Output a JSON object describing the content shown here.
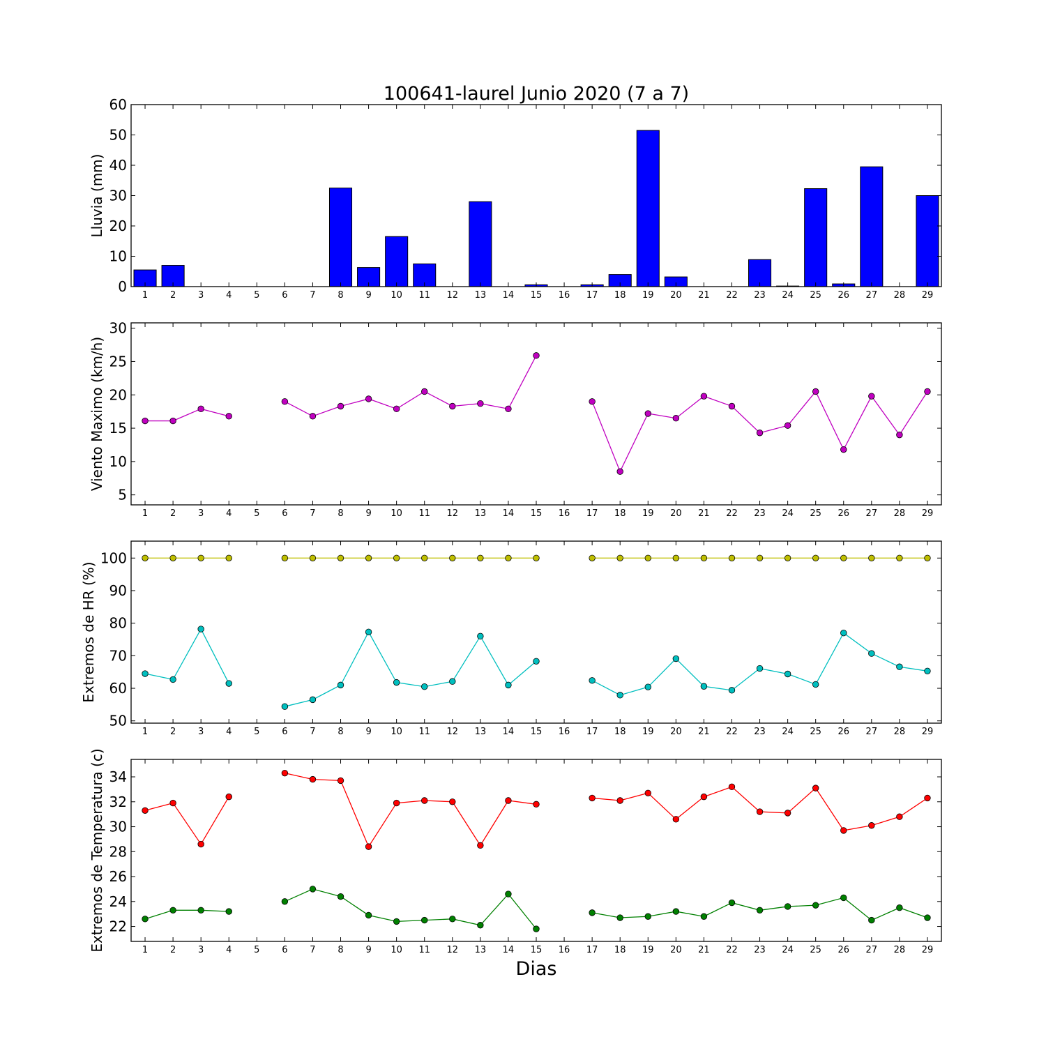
{
  "chart_data": {
    "title": "100641-laurel Junio 2020  (7 a 7)",
    "xlabel": "Dias",
    "days": [
      1,
      2,
      3,
      4,
      5,
      6,
      7,
      8,
      9,
      10,
      11,
      12,
      13,
      14,
      15,
      16,
      17,
      18,
      19,
      20,
      21,
      22,
      23,
      24,
      25,
      26,
      27,
      28,
      29
    ],
    "panels": [
      {
        "type": "bar",
        "ylabel": "Lluvia (mm)",
        "ylim": [
          0,
          60
        ],
        "yticks": [
          0,
          10,
          20,
          30,
          40,
          50,
          60
        ],
        "series": [
          {
            "color": "#0000ff",
            "values": [
              5.5,
              7,
              0,
              0,
              0,
              0,
              0,
              32.5,
              6.3,
              16.5,
              7.5,
              0,
              28,
              0,
              0.6,
              0,
              0.6,
              4,
              51.5,
              3.2,
              0,
              0,
              8.9,
              0.2,
              32.3,
              0.9,
              39.5,
              0,
              30
            ]
          }
        ]
      },
      {
        "type": "line",
        "ylabel": "Viento Maximo (km/h)",
        "ylim": [
          3.5,
          30.8
        ],
        "yticks": [
          5,
          10,
          15,
          20,
          25,
          30
        ],
        "series": [
          {
            "color": "#c000c0",
            "values": [
              16.1,
              16.1,
              17.9,
              16.8,
              null,
              19,
              16.8,
              18.3,
              19.4,
              17.9,
              20.5,
              18.3,
              18.7,
              17.9,
              25.9,
              null,
              19,
              8.5,
              17.2,
              16.5,
              19.8,
              18.3,
              14.3,
              15.4,
              20.5,
              11.8,
              19.8,
              14,
              20.5
            ]
          }
        ]
      },
      {
        "type": "line",
        "ylabel": "Extremos de HR (%)",
        "ylim": [
          49.3,
          105.2
        ],
        "yticks": [
          50,
          60,
          70,
          80,
          90,
          100
        ],
        "series": [
          {
            "color": "#bfbf00",
            "values": [
              100,
              100,
              100,
              100,
              null,
              100,
              100,
              100,
              100,
              100,
              100,
              100,
              100,
              100,
              100,
              null,
              100,
              100,
              100,
              100,
              100,
              100,
              100,
              100,
              100,
              100,
              100,
              100,
              100
            ]
          },
          {
            "color": "#00bfbf",
            "values": [
              64.5,
              62.7,
              78.2,
              61.5,
              null,
              54.4,
              56.5,
              61,
              77.3,
              61.8,
              60.5,
              62.1,
              76,
              61,
              68.3,
              null,
              62.4,
              57.9,
              60.4,
              69.1,
              60.6,
              59.4,
              66.1,
              64.4,
              61.2,
              77,
              70.7,
              66.6,
              65.3
            ]
          }
        ]
      },
      {
        "type": "line",
        "ylabel": "Extremos de Temperatura (c)",
        "ylim": [
          20.8,
          35.4
        ],
        "yticks": [
          22,
          24,
          26,
          28,
          30,
          32,
          34
        ],
        "series": [
          {
            "color": "#ff0000",
            "values": [
              31.3,
              31.9,
              28.6,
              32.4,
              null,
              34.3,
              33.8,
              33.7,
              28.4,
              31.9,
              32.1,
              32,
              28.5,
              32.1,
              31.8,
              null,
              32.3,
              32.1,
              32.7,
              30.6,
              32.4,
              33.2,
              31.2,
              31.1,
              33.1,
              29.7,
              30.1,
              30.8,
              32.3
            ]
          },
          {
            "color": "#008000",
            "values": [
              22.6,
              23.3,
              23.3,
              23.2,
              null,
              24,
              25,
              24.4,
              22.9,
              22.4,
              22.5,
              22.6,
              22.1,
              24.6,
              21.8,
              null,
              23.1,
              22.7,
              22.8,
              23.2,
              22.8,
              23.9,
              23.3,
              23.6,
              23.7,
              24.3,
              22.5,
              23.5,
              22.7
            ]
          }
        ]
      }
    ]
  }
}
